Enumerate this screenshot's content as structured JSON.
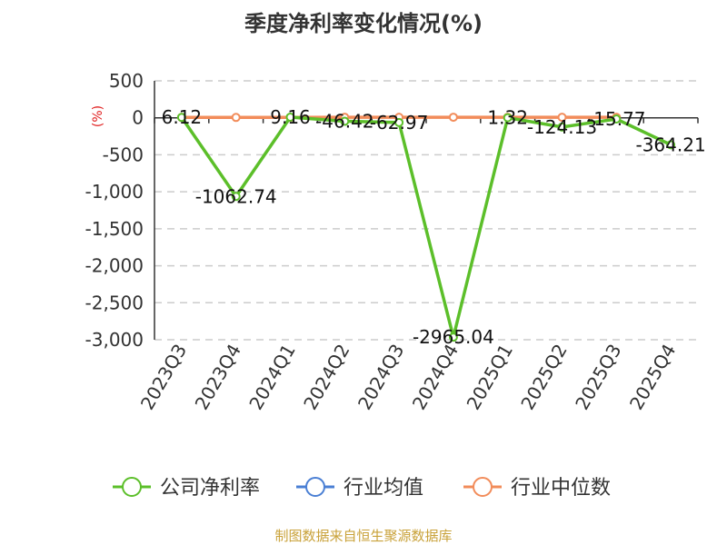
{
  "chart_data": {
    "type": "line",
    "title": "季度净利率变化情况(%)",
    "unit_label": "(%)",
    "categories": [
      "2023Q3",
      "2023Q4",
      "2024Q1",
      "2024Q2",
      "2024Q3",
      "2024Q4",
      "2025Q1",
      "2025Q2",
      "2025Q3",
      "2025Q4"
    ],
    "ylim": [
      -3000,
      500
    ],
    "yticks": [
      500,
      0,
      -500,
      -1000,
      -1500,
      -2000,
      -2500,
      -3000
    ],
    "ytick_labels": [
      "500",
      "0",
      "-500",
      "-1,000",
      "-1,500",
      "-2,000",
      "-2,500",
      "-3,000"
    ],
    "grid": true,
    "legend_position": "bottom",
    "series": [
      {
        "name": "公司净利率",
        "color": "#5cbf2a",
        "values": [
          6.12,
          -1062.74,
          9.16,
          -46.42,
          -62.97,
          -2965.04,
          1.32,
          -124.13,
          -15.77,
          -364.21
        ],
        "labels": [
          "6.12",
          "-1062.74",
          "9.16",
          "-46.42",
          "-62.97",
          "-2965.04",
          "1.32",
          "-124.13",
          "-15.77",
          "-364.21"
        ]
      },
      {
        "name": "行业均值",
        "color": "#4a7fd4",
        "values": [
          null,
          null,
          null,
          null,
          null,
          null,
          null,
          null,
          null,
          null
        ]
      },
      {
        "name": "行业中位数",
        "color": "#f28c5a",
        "values": [
          5,
          5,
          6,
          7,
          7,
          8,
          8,
          7,
          7,
          null
        ]
      }
    ]
  },
  "footer": {
    "source": "制图数据来自恒生聚源数据库"
  }
}
